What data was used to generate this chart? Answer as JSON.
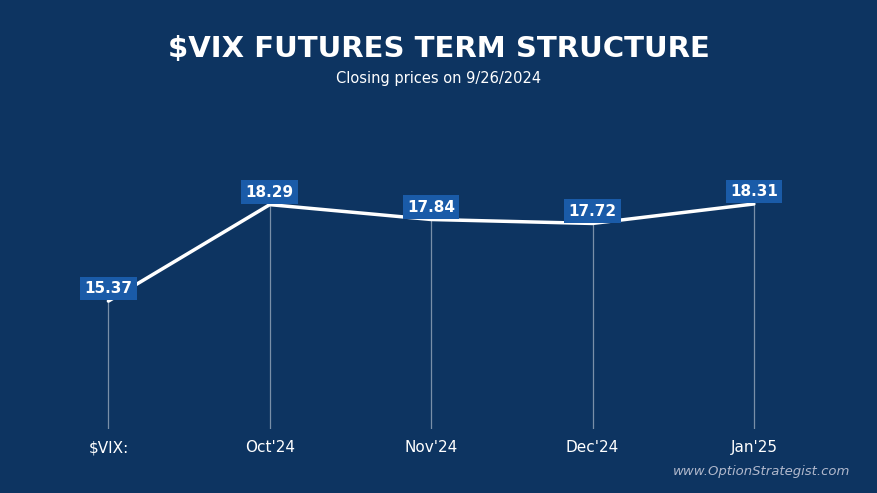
{
  "title": "$VIX FUTURES TERM STRUCTURE",
  "subtitle": "Closing prices on 9/26/2024",
  "watermark": "www.OptionStrategist.com",
  "categories": [
    "$VIX:",
    "Oct'24",
    "Nov'24",
    "Dec'24",
    "Jan'25"
  ],
  "values": [
    15.37,
    18.29,
    17.84,
    17.72,
    18.31
  ],
  "x_positions": [
    0,
    1,
    2,
    3,
    4
  ],
  "background_color": "#0d3461",
  "line_color": "#ffffff",
  "label_box_color": "#1a5ba8",
  "label_text_color": "#ffffff",
  "title_color": "#ffffff",
  "subtitle_color": "#ffffff",
  "watermark_color": "#b0b8cc",
  "ylim": [
    11.5,
    21.5
  ],
  "xlim": [
    -0.4,
    4.6
  ],
  "title_fontsize": 21,
  "subtitle_fontsize": 10.5,
  "label_fontsize": 11,
  "xtick_fontsize": 11,
  "watermark_fontsize": 9.5
}
